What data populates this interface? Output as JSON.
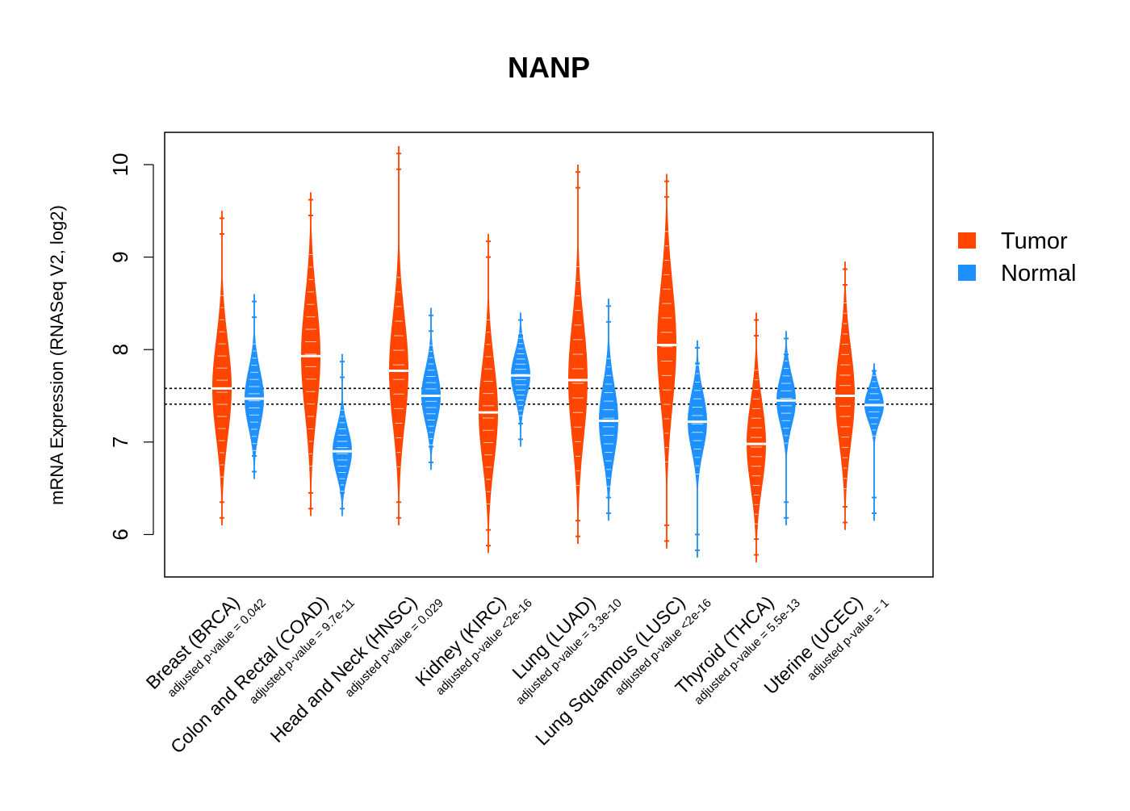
{
  "chart_data": {
    "type": "violin",
    "title": "NANP",
    "ylabel": "mRNA Expression (RNASeq V2, log2)",
    "xlabel": "",
    "ylim": [
      5.65,
      10.35
    ],
    "yticks": [
      6,
      7,
      8,
      9,
      10
    ],
    "reference_lines": [
      7.41,
      7.58
    ],
    "colors": {
      "Tumor": "#FF4500",
      "Normal": "#1E90FF"
    },
    "legend": {
      "position": "right",
      "entries": [
        "Tumor",
        "Normal"
      ]
    },
    "categories": [
      "Breast (BRCA)",
      "Colon and Rectal (COAD)",
      "Head and Neck (HNSC)",
      "Kidney (KIRC)",
      "Lung (LUAD)",
      "Lung Squamous (LUSC)",
      "Thyroid (THCA)",
      "Uterine (UCEC)"
    ],
    "pvalue_labels": [
      "adjusted p-value = 0.042",
      "adjusted p-value = 9.7e-11",
      "adjusted p-value = 0.029",
      "adjusted p-value <2e-16",
      "adjusted p-value = 3.3e-10",
      "adjusted p-value <2e-16",
      "adjusted p-value = 5.5e-13",
      "adjusted p-value = 1"
    ],
    "series": [
      {
        "name": "Tumor",
        "medians": [
          7.58,
          7.93,
          7.77,
          7.32,
          7.67,
          8.05,
          6.98,
          7.5
        ],
        "ranges": [
          [
            6.1,
            9.5
          ],
          [
            6.2,
            9.7
          ],
          [
            6.1,
            10.2
          ],
          [
            5.8,
            9.25
          ],
          [
            5.9,
            10.0
          ],
          [
            5.85,
            9.9
          ],
          [
            5.7,
            8.4
          ],
          [
            6.05,
            8.95
          ]
        ]
      },
      {
        "name": "Normal",
        "medians": [
          7.47,
          6.9,
          7.5,
          7.72,
          7.23,
          7.22,
          7.45,
          7.4
        ],
        "ranges": [
          [
            6.6,
            8.6
          ],
          [
            6.2,
            7.95
          ],
          [
            6.7,
            8.45
          ],
          [
            6.95,
            8.4
          ],
          [
            6.15,
            8.55
          ],
          [
            5.75,
            8.1
          ],
          [
            6.1,
            8.2
          ],
          [
            6.15,
            7.85
          ]
        ]
      }
    ]
  }
}
